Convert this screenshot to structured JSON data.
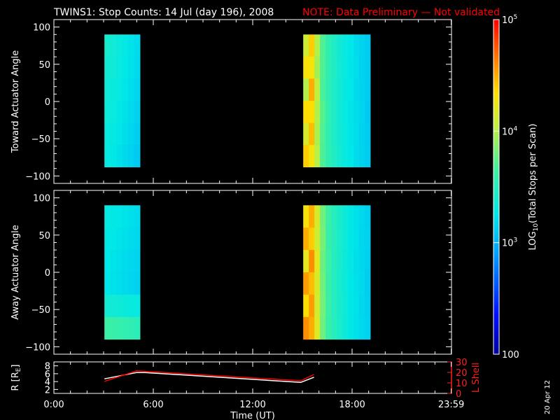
{
  "header": {
    "title": "TWINS1: Stop Counts: 14 Jul (day 196), 2008",
    "note": "NOTE: Data Preliminary — Not validated",
    "note_color": "#ff0000"
  },
  "date_stamp": "20 Apr 12",
  "chart_data": [
    {
      "type": "heatmap",
      "ylabel": "Toward Actuator Angle",
      "ylim": [
        -110,
        110
      ],
      "yticks": [
        -100,
        -50,
        0,
        50,
        100
      ],
      "xlim": [
        0,
        24
      ],
      "angle_range": [
        -88,
        90
      ],
      "blocks": [
        {
          "x_start_hours": 3.05,
          "x_end_hours": 5.2,
          "columns": [
            [
              3.4,
              3.38,
              3.36,
              3.34,
              3.32,
              3.3
            ],
            [
              3.36,
              3.35,
              3.33,
              3.31,
              3.29,
              3.27
            ],
            [
              3.32,
              3.31,
              3.29,
              3.27,
              3.25,
              3.23
            ],
            [
              3.28,
              3.27,
              3.25,
              3.23,
              3.21,
              3.19
            ],
            [
              3.24,
              3.23,
              3.21,
              3.19,
              3.17,
              3.15
            ],
            [
              3.2,
              3.19,
              3.17,
              3.15,
              3.13,
              3.11
            ]
          ]
        },
        {
          "x_start_hours": 15.05,
          "x_end_hours": 19.1,
          "columns": [
            [
              4.1,
              4.3,
              4.0,
              4.35,
              4.15,
              4.4
            ],
            [
              4.4,
              4.3,
              4.5,
              4.35,
              4.45,
              4.3
            ],
            [
              4.0,
              3.95,
              4.05,
              4.0,
              3.98,
              4.02
            ],
            [
              3.7,
              3.7,
              3.68,
              3.72,
              3.7,
              3.69
            ],
            [
              3.55,
              3.55,
              3.54,
              3.56,
              3.55,
              3.55
            ],
            [
              3.45,
              3.46,
              3.44,
              3.45,
              3.44,
              3.46
            ],
            [
              3.38,
              3.37,
              3.38,
              3.36,
              3.37,
              3.38
            ],
            [
              3.3,
              3.31,
              3.29,
              3.3,
              3.31,
              3.3
            ],
            [
              3.26,
              3.25,
              3.26,
              3.24,
              3.25,
              3.26
            ],
            [
              3.2,
              3.21,
              3.19,
              3.2,
              3.21,
              3.2
            ],
            [
              3.16,
              3.15,
              3.16,
              3.17,
              3.15,
              3.16
            ],
            [
              3.12,
              3.13,
              3.12,
              3.11,
              3.12,
              3.13
            ]
          ]
        }
      ]
    },
    {
      "type": "heatmap",
      "ylabel": "Away Actuator Angle",
      "ylim": [
        -110,
        110
      ],
      "yticks": [
        -100,
        -50,
        0,
        50,
        100
      ],
      "xlim": [
        0,
        24
      ],
      "angle_range": [
        -90,
        90
      ],
      "blocks": [
        {
          "x_start_hours": 3.05,
          "x_end_hours": 5.2,
          "columns": [
            [
              3.3,
              3.28,
              3.26,
              3.25,
              3.38,
              3.62
            ],
            [
              3.28,
              3.26,
              3.24,
              3.23,
              3.36,
              3.6
            ],
            [
              3.26,
              3.24,
              3.22,
              3.21,
              3.35,
              3.58
            ],
            [
              3.24,
              3.22,
              3.2,
              3.19,
              3.33,
              3.56
            ],
            [
              3.22,
              3.2,
              3.18,
              3.17,
              3.31,
              3.55
            ],
            [
              3.2,
              3.18,
              3.16,
              3.15,
              3.3,
              3.52
            ]
          ]
        },
        {
          "x_start_hours": 15.05,
          "x_end_hours": 19.1,
          "columns": [
            [
              4.3,
              4.5,
              4.2,
              4.55,
              4.35,
              4.6
            ],
            [
              4.5,
              4.4,
              4.6,
              4.45,
              4.55,
              4.5
            ],
            [
              4.15,
              4.1,
              4.2,
              4.15,
              4.12,
              4.18
            ],
            [
              3.8,
              3.82,
              3.78,
              3.8,
              3.81,
              3.79
            ],
            [
              3.62,
              3.6,
              3.63,
              3.61,
              3.62,
              3.6
            ],
            [
              3.5,
              3.51,
              3.49,
              3.5,
              3.49,
              3.51
            ],
            [
              3.42,
              3.41,
              3.42,
              3.4,
              3.41,
              3.42
            ],
            [
              3.34,
              3.35,
              3.33,
              3.34,
              3.35,
              3.34
            ],
            [
              3.28,
              3.27,
              3.28,
              3.26,
              3.27,
              3.28
            ],
            [
              3.22,
              3.23,
              3.21,
              3.22,
              3.23,
              3.22
            ],
            [
              3.18,
              3.17,
              3.18,
              3.19,
              3.17,
              3.18
            ],
            [
              3.14,
              3.15,
              3.14,
              3.13,
              3.14,
              3.15
            ]
          ]
        }
      ]
    },
    {
      "type": "line",
      "ylabel_left": "R [R",
      "ylabel_left_sub": "E",
      "ylabel_left_close": "]",
      "ylabel_right": "L Shell",
      "ylim_left": [
        1,
        9
      ],
      "yticks_left": [
        2,
        4,
        6,
        8
      ],
      "ylim_right": [
        0,
        30
      ],
      "yticks_right": [
        0,
        10,
        20,
        30
      ],
      "xlim": [
        0,
        24
      ],
      "xticks": [
        "0:00",
        "6:00",
        "12:00",
        "18:00",
        "23:59"
      ],
      "xtick_hours": [
        0,
        6,
        12,
        18,
        23.983
      ],
      "xlabel": "Time (UT)",
      "series": [
        {
          "axis": "left",
          "color": "#ffffff",
          "x": [
            3.05,
            5.0,
            5.5,
            14.9,
            15.7
          ],
          "y": [
            4.7,
            6.3,
            6.3,
            3.8,
            5.1
          ]
        },
        {
          "axis": "right",
          "color": "#ff0000",
          "x": [
            3.05,
            5.0,
            5.5,
            14.9,
            15.7
          ],
          "y": [
            11.5,
            21.5,
            21.0,
            12.0,
            18.0
          ]
        }
      ]
    }
  ],
  "colorbar": {
    "label_prefix": "LOG",
    "label_sub": "10",
    "label_rest": "(Total Stops per Scan)",
    "range_log": [
      2,
      5
    ],
    "tick_labels": [
      {
        "base": "10",
        "exp": "5",
        "value": 5
      },
      {
        "base": "10",
        "exp": "4",
        "value": 4
      },
      {
        "base": "10",
        "exp": "3",
        "value": 3
      },
      {
        "base": "100",
        "exp": "",
        "value": 2
      }
    ]
  }
}
